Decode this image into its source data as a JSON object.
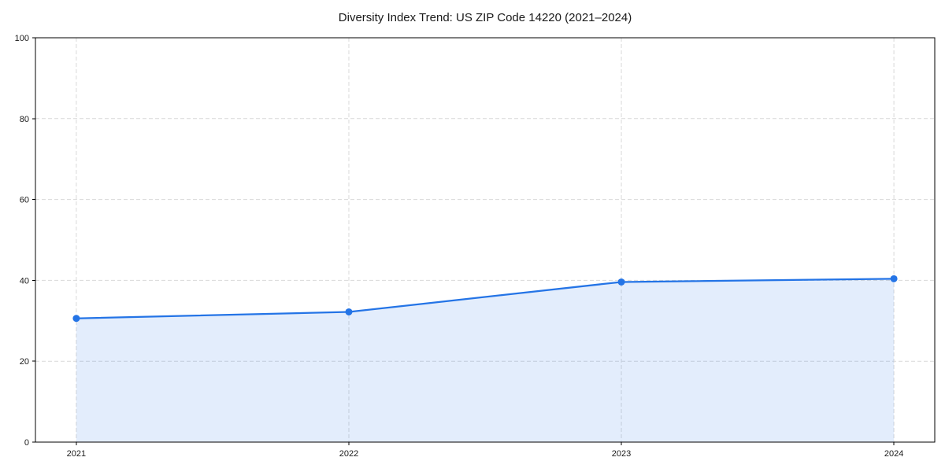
{
  "chart": {
    "title": "Diversity Index Trend: US ZIP Code 14220 (2021–2024)"
  },
  "chart_data": {
    "type": "area",
    "title": "Diversity Index Trend: US ZIP Code 14220 (2021–2024)",
    "x": [
      2021,
      2022,
      2023,
      2024
    ],
    "categories": [
      "2021",
      "2022",
      "2023",
      "2024"
    ],
    "series": [
      {
        "name": "Diversity Index",
        "values": [
          30.6,
          32.2,
          39.6,
          40.4
        ]
      }
    ],
    "xlabel": "",
    "ylabel": "",
    "ylim": [
      0,
      100
    ],
    "yticks": [
      0,
      20,
      40,
      60,
      80,
      100
    ],
    "grid": true,
    "grid_style": "dashed",
    "legend": false,
    "marker": "circle",
    "colors": {
      "line": "#2474e6",
      "marker": "#2474e6",
      "fill_rgba": "rgba(36,116,230,0.13)",
      "grid": "#d9d9d9",
      "spine": "#000000",
      "text": "#1a1a1a",
      "background": "#ffffff"
    }
  }
}
